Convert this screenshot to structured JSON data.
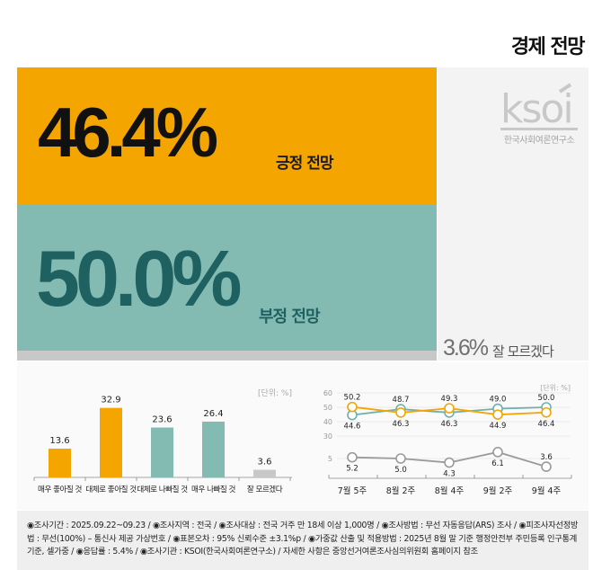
{
  "header": {
    "title": "경제 전망"
  },
  "colors": {
    "positive": "#f5a500",
    "negative": "#83bbb3",
    "negative_text": "#1f6060",
    "unknown": "#c8c8c8",
    "panel": "#f3f3f3"
  },
  "summary": {
    "positive": {
      "value": "46.4%",
      "label": "긍정 전망"
    },
    "negative": {
      "value": "50.0%",
      "label": "부정 전망"
    },
    "unknown": {
      "value": "3.6%",
      "label": "잘 모르겠다"
    }
  },
  "logo": {
    "text": "ksoi",
    "subtitle": "한국사회여론연구소"
  },
  "chart_data": [
    {
      "type": "bar",
      "title": "",
      "unit_label": "[단위: %]",
      "categories": [
        "매우 좋아질 것",
        "대체로 좋아질 것",
        "대체로 나빠질 것",
        "매우 나빠질 것",
        "잘 모르겠다"
      ],
      "values": [
        13.6,
        32.9,
        23.6,
        26.4,
        3.6
      ],
      "value_labels": [
        "13.6",
        "32.9",
        "23.6",
        "26.4",
        "3.6"
      ],
      "bar_colors": [
        "#f5a500",
        "#f5a500",
        "#83bbb3",
        "#83bbb3",
        "#c8c8c8"
      ],
      "xlabel": "",
      "ylabel": "",
      "ylim": [
        0,
        35
      ],
      "grid": false
    },
    {
      "type": "line",
      "title": "",
      "unit_label": "[단위: %]",
      "x": [
        "7월 5주",
        "8월 2주",
        "8월 4주",
        "9월 2주",
        "9월 4주"
      ],
      "y_ticks": [
        "60",
        "50",
        "40",
        "30",
        "5"
      ],
      "axis_break": "between 30 and 5",
      "series": [
        {
          "name": "긍정 전망",
          "color": "#f5a500",
          "values": [
            50.2,
            46.3,
            49.3,
            44.9,
            46.4
          ],
          "labels": [
            "50.2",
            "46.3",
            "49.3",
            "44.9",
            "46.4"
          ]
        },
        {
          "name": "부정 전망",
          "color": "#6fb0aa",
          "values": [
            44.6,
            48.7,
            46.3,
            49.0,
            50.0
          ],
          "labels": [
            "44.6",
            "48.7",
            "46.3",
            "49.0",
            "50.0"
          ]
        },
        {
          "name": "잘 모르겠다",
          "color": "#9a9a9a",
          "values": [
            5.2,
            5.0,
            4.3,
            6.1,
            3.6
          ],
          "labels": [
            "5.2",
            "5.0",
            "4.3",
            "6.1",
            "3.6"
          ]
        }
      ],
      "grid": true
    }
  ],
  "footer": {
    "text": "◉조사기간 : 2025.09.22~09.23 / ◉조사지역 : 전국 / ◉조사대상 : 전국 거주 만 18세 이상 1,000명 / ◉조사방법 : 무선 자동응답(ARS) 조사 / ◉피조사자선정방법 : 무선(100%) – 통신사 제공 가상번호 / ◉표본오차 : 95% 신뢰수준 ±3.1%p / ◉가중값 산출 및 적용방법 : 2025년 8월 말 기준 행정안전부 주민등록 인구통계 기준, 셀가중 / ◉응답률 : 5.4% / ◉조사기관 : KSOI(한국사회여론연구소) / 자세한 사항은 중앙선거여론조사심의위원회 홈페이지 참조"
  }
}
